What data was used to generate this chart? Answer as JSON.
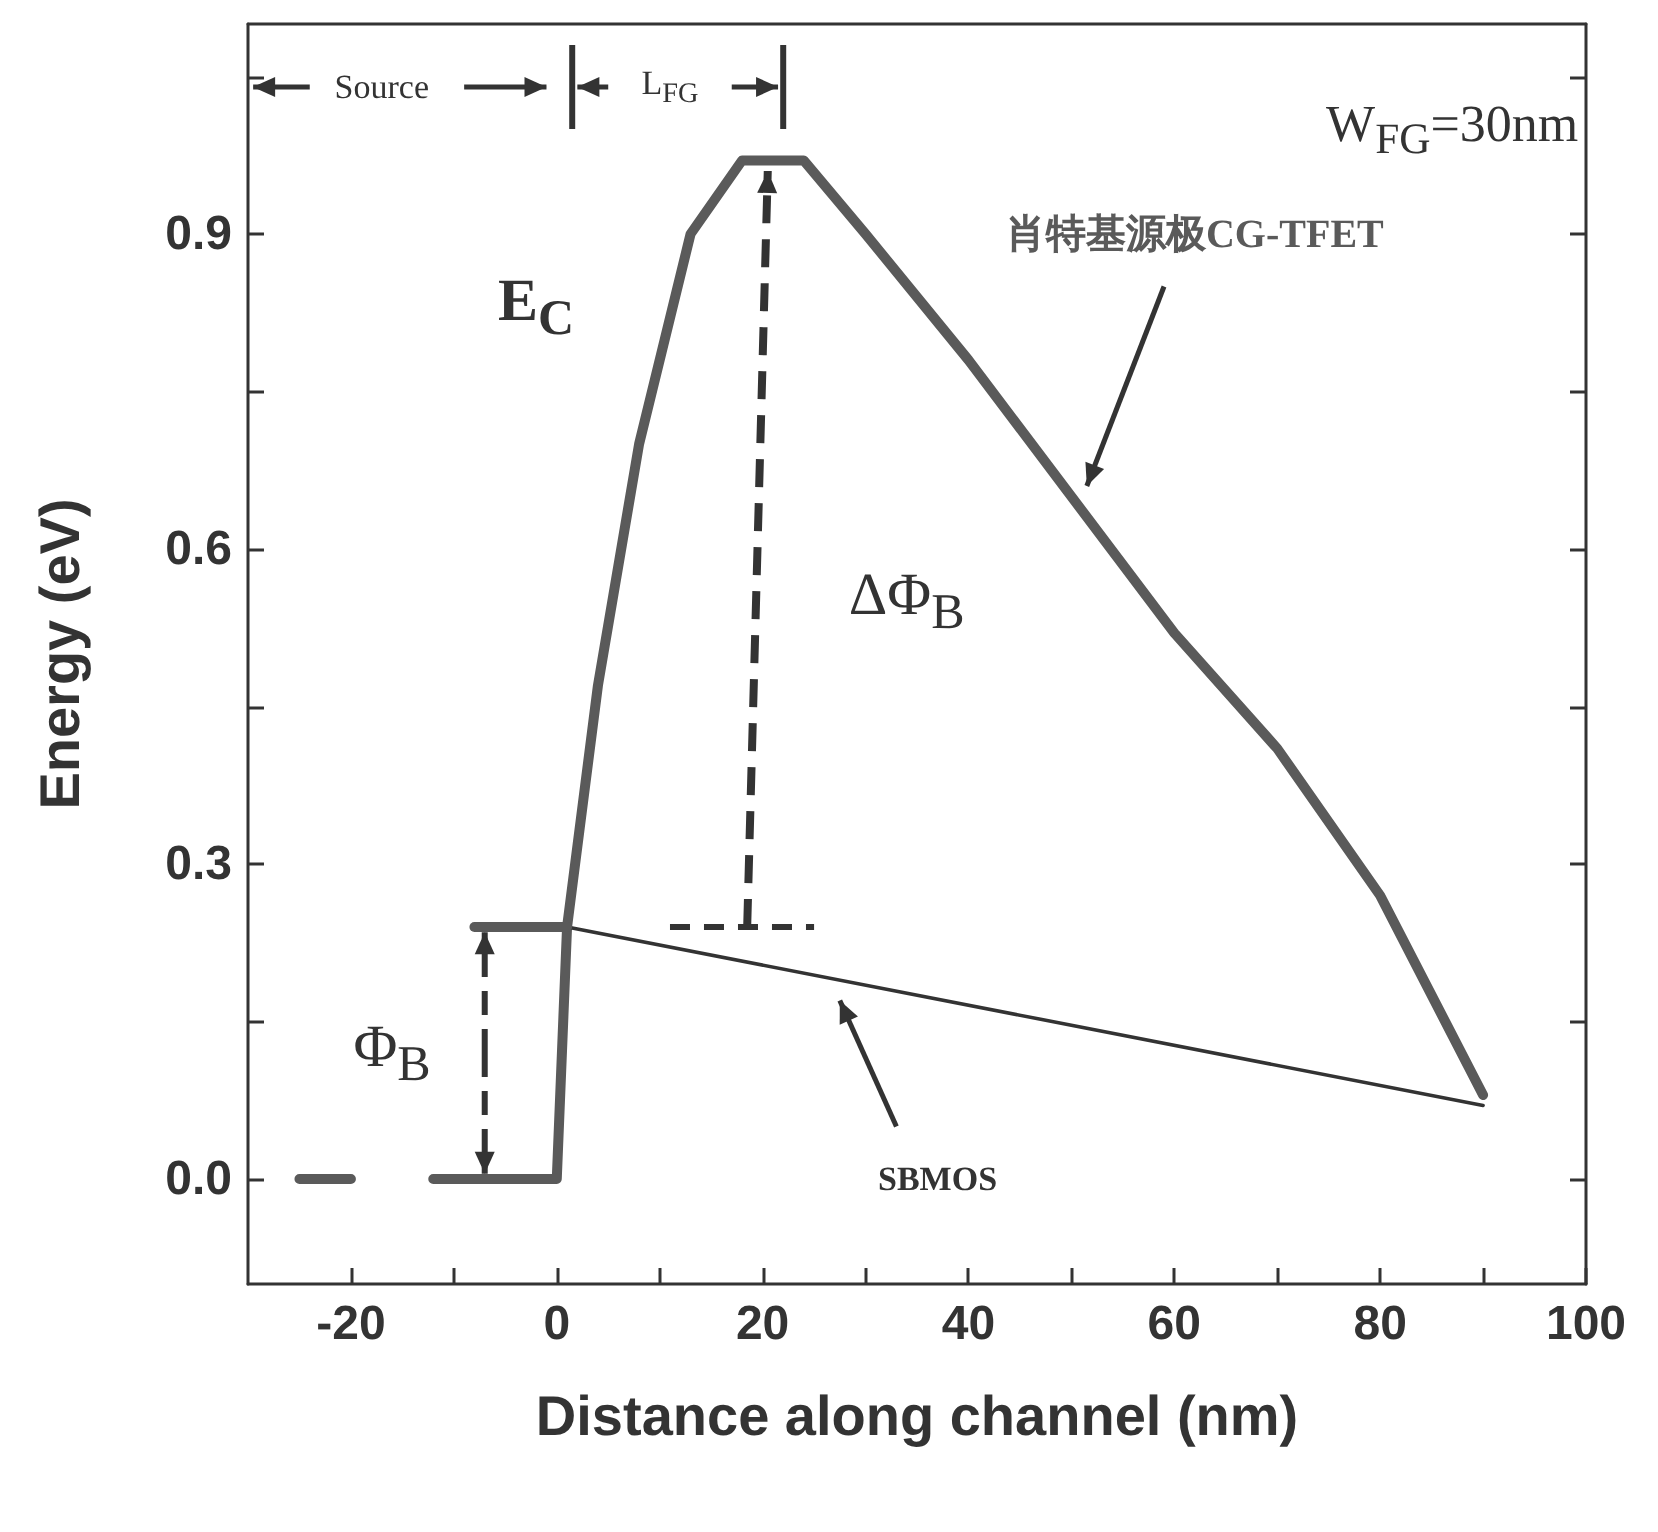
{
  "chart_data": {
    "type": "line",
    "xlabel": "Distance along channel (nm)",
    "ylabel": "Energy (eV)",
    "xlim": [
      -30,
      100
    ],
    "xticks": [
      -20,
      {
        "value": -10,
        "label": null
      },
      0,
      {
        "value": 10,
        "label": null
      },
      20,
      {
        "value": 30,
        "label": null
      },
      40,
      {
        "value": 50,
        "label": null
      },
      60,
      {
        "value": 70,
        "label": null
      },
      80,
      {
        "value": 90,
        "label": null
      },
      100
    ],
    "ylim": [
      -0.1,
      1.1
    ],
    "yticks": [
      {
        "value": 0,
        "label": "0.0"
      },
      {
        "value": 0.15,
        "label": null
      },
      0.3,
      {
        "value": 0.45,
        "label": null
      },
      0.6,
      {
        "value": 0.75,
        "label": null
      },
      0.9,
      {
        "value": 1.05,
        "label": null
      }
    ],
    "grid": false,
    "legend": false,
    "marker": "none",
    "series": [
      {
        "name": "肖特基源极CG-TFET",
        "color": "#5a5a5a",
        "x": [
          -25,
          -20,
          -16,
          -12,
          0,
          1,
          4,
          8,
          13,
          18,
          24,
          30,
          40,
          50,
          60,
          70,
          80,
          90
        ],
        "values": [
          0,
          0,
          null,
          0,
          0,
          0.24,
          0.47,
          0.7,
          0.9,
          0.97,
          0.97,
          0.9,
          0.78,
          0.65,
          0.52,
          0.41,
          0.27,
          0.08
        ]
      },
      {
        "name": "SBMOS",
        "color": "#333333",
        "x": [
          1,
          90
        ],
        "values": [
          0.24,
          0.07
        ]
      },
      {
        "color": "#5a5a5a",
        "x": [
          -8,
          1
        ],
        "values": [
          0.24,
          0.24
        ]
      }
    ],
    "annotations": [
      "Source",
      "L$_{FG}$",
      "W$_{FG}$=30nm",
      "E$_{C}$",
      "ΔΦ$_{B}$",
      {
        "text": "Φ$_{B}$",
        "x": -7,
        "y": 0.24
      }
    ]
  }
}
